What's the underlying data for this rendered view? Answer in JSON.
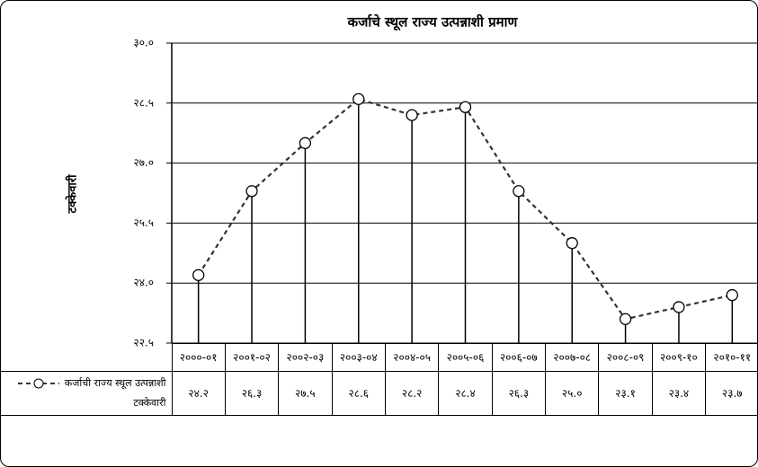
{
  "chart_data": {
    "type": "line",
    "title": "कर्जाचे स्थूल राज्य उत्पन्नाशी प्रमाण",
    "y_label": "टक्केवारी",
    "categories": [
      "२०००-०१",
      "२००१-०२",
      "२००२-०३",
      "२००३-०४",
      "२००४-०५",
      "२००५-०६",
      "२००६-०७",
      "२००७-०८",
      "२००८-०९",
      "२००९-१०",
      "२०१०-११"
    ],
    "series": [
      {
        "name": "कर्जाची राज्य स्थूल उत्पन्नाशी टक्केवारी",
        "color": "#333333",
        "values": [
          24.2,
          26.3,
          27.5,
          28.6,
          28.2,
          28.4,
          26.3,
          25.0,
          23.1,
          23.4,
          23.7
        ],
        "value_labels": [
          "२४.२",
          "२६.३",
          "२७.५",
          "२८.६",
          "२८.२",
          "२८.४",
          "२६.३",
          "२५.०",
          "२३.१",
          "२३.४",
          "२३.७"
        ]
      }
    ],
    "ylim": [
      22.5,
      30.0
    ],
    "yticks": [
      {
        "value": 22.5,
        "label": "२२.५"
      },
      {
        "value": 24.0,
        "label": "२४.०"
      },
      {
        "value": 25.5,
        "label": "२५.५"
      },
      {
        "value": 27.0,
        "label": "२७.०"
      },
      {
        "value": 28.5,
        "label": "२८.५"
      },
      {
        "value": 30.0,
        "label": "३०.०"
      }
    ],
    "grid": true
  }
}
